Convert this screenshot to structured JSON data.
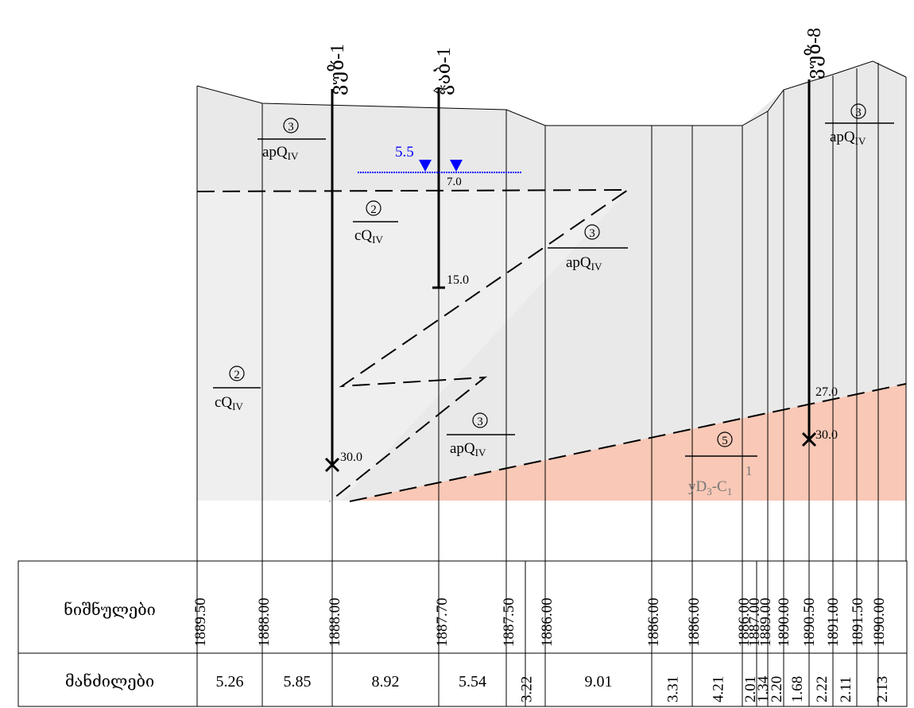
{
  "boreholes": [
    {
      "id": "bh1",
      "label": "ვუზ-1",
      "depth_label": "30.0"
    },
    {
      "id": "bh2",
      "label": "ჭაბ-1",
      "depth_label": "15.0",
      "water_level_label": "5.5",
      "water_level2_label": "7.0"
    },
    {
      "id": "bh3",
      "label": "ვუზ-8",
      "depth_label": "30.0",
      "contact_label": "27.0"
    }
  ],
  "layers": [
    {
      "id": "layer3-topleft",
      "number": "3",
      "index": "apQ",
      "sub": "IV"
    },
    {
      "id": "layer2-upper",
      "number": "2",
      "index": "cQ",
      "sub": "IV"
    },
    {
      "id": "layer3-middle",
      "number": "3",
      "index": "apQ",
      "sub": "IV"
    },
    {
      "id": "layer2-left",
      "number": "2",
      "index": "cQ",
      "sub": "IV"
    },
    {
      "id": "layer3-lower",
      "number": "3",
      "index": "apQ",
      "sub": "IV"
    },
    {
      "id": "layer3-right",
      "number": "3",
      "index": "apQ",
      "sub": "IV"
    },
    {
      "id": "layer5-bedrock",
      "number": "5",
      "index": "yD",
      "sub": "3",
      "index2": "-C",
      "sub2": "1",
      "sup2": "1"
    }
  ],
  "table": {
    "row1_label": "ნიშნულები",
    "row2_label": "მანძილები",
    "elevations": [
      "1889.50",
      "1888.00",
      "1888.00",
      "1887.70",
      "1887.50",
      "1886.00",
      "1886.00",
      "1886.00",
      "1886.00",
      "1887.00",
      "1889.00",
      "1890.00",
      "1890.50",
      "1891.00",
      "1891.50",
      "1890.00"
    ],
    "distances": [
      "5.26",
      "5.85",
      "8.92",
      "5.54",
      "3.22",
      "9.01",
      "3.31",
      "4.21",
      "2.01",
      "1.34",
      "2.20",
      "1.68",
      "2.22",
      "2.11",
      "2.13"
    ]
  },
  "colors": {
    "soil_fill": "#e9e9e9",
    "soil_fill_light": "#eeeeee",
    "soil_fill_dark": "#e2e2e2",
    "bedrock_fill": "#f9c8b6",
    "water": "#0000ff",
    "line": "#000000"
  }
}
